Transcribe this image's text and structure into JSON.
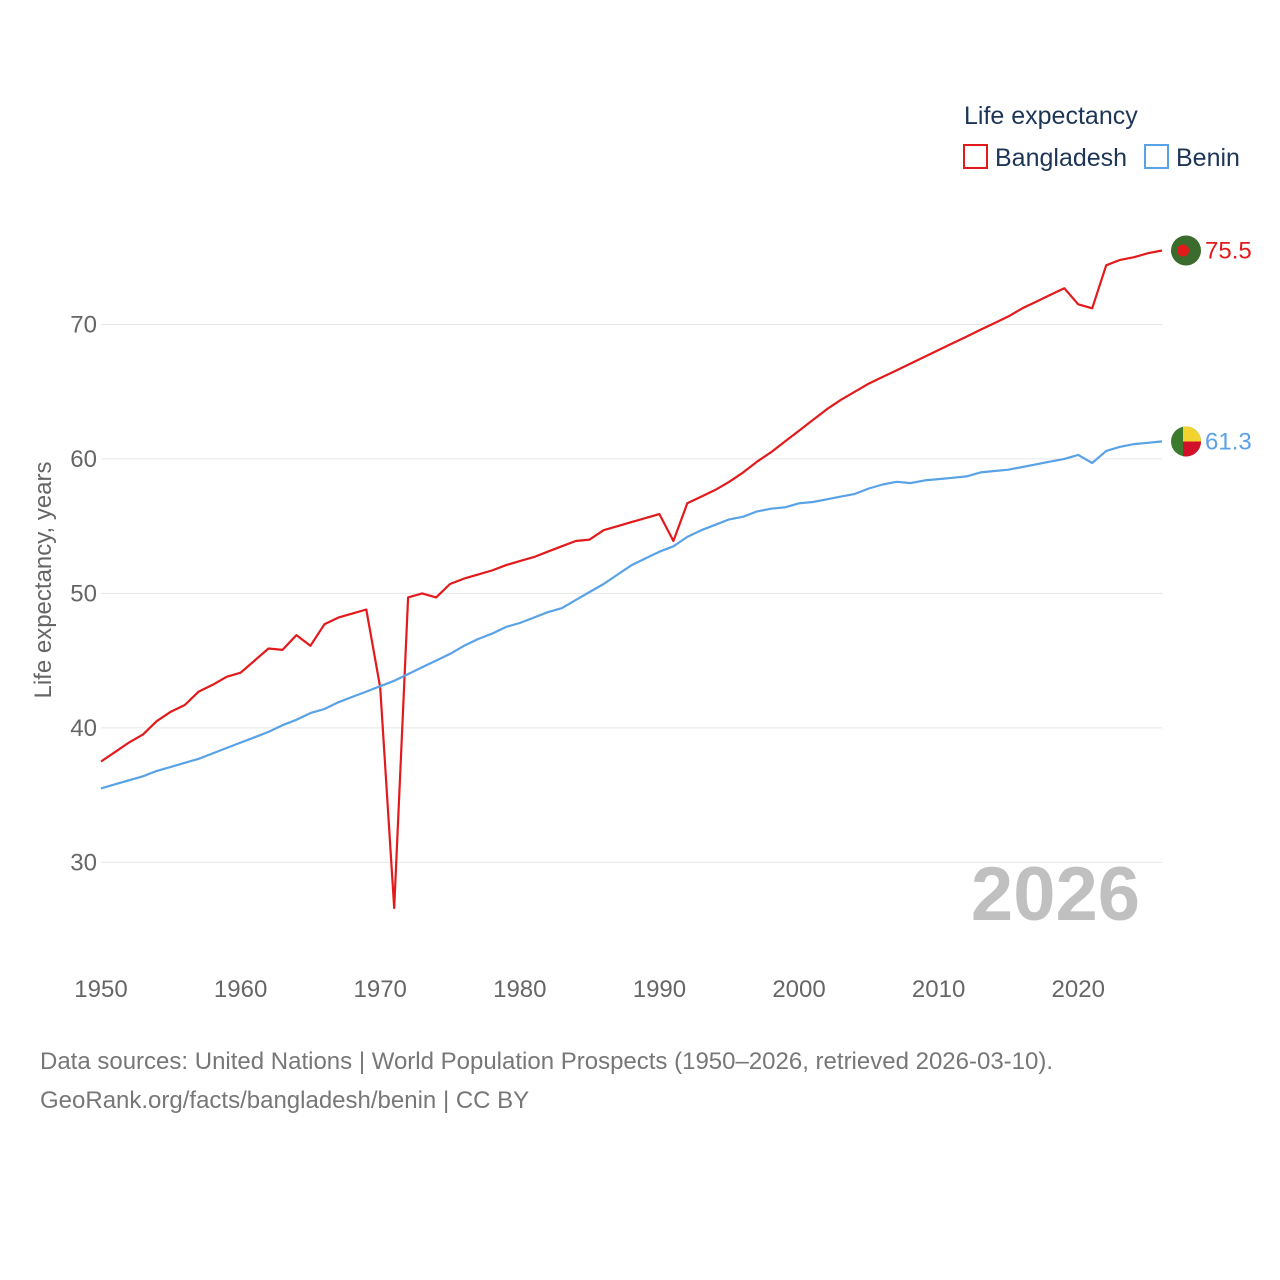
{
  "chart_data": {
    "type": "line",
    "ylabel": "Life expectancy, years",
    "legend_title": "Life expectancy",
    "xlim": [
      1950,
      2026
    ],
    "ylim": [
      24,
      80
    ],
    "xticks": [
      1950,
      1960,
      1970,
      1980,
      1990,
      2000,
      2010,
      2020
    ],
    "yticks": [
      30,
      40,
      50,
      60,
      70
    ],
    "year_overlay": "2026",
    "x": [
      1950,
      1951,
      1952,
      1953,
      1954,
      1955,
      1956,
      1957,
      1958,
      1959,
      1960,
      1961,
      1962,
      1963,
      1964,
      1965,
      1966,
      1967,
      1968,
      1969,
      1970,
      1971,
      1972,
      1973,
      1974,
      1975,
      1976,
      1977,
      1978,
      1979,
      1980,
      1981,
      1982,
      1983,
      1984,
      1985,
      1986,
      1987,
      1988,
      1989,
      1990,
      1991,
      1992,
      1993,
      1994,
      1995,
      1996,
      1997,
      1998,
      1999,
      2000,
      2001,
      2002,
      2003,
      2004,
      2005,
      2006,
      2007,
      2008,
      2009,
      2010,
      2011,
      2012,
      2013,
      2014,
      2015,
      2016,
      2017,
      2018,
      2019,
      2020,
      2021,
      2022,
      2023,
      2024,
      2025,
      2026
    ],
    "series": [
      {
        "name": "Bangladesh",
        "color": "#e31a1c",
        "end_label": "75.5",
        "flag": "bangladesh-flag",
        "values": [
          37.5,
          38.2,
          38.9,
          39.5,
          40.5,
          41.2,
          41.7,
          42.7,
          43.2,
          43.8,
          44.1,
          45.0,
          45.9,
          45.8,
          46.9,
          46.1,
          47.7,
          48.2,
          48.5,
          48.8,
          43.0,
          26.6,
          49.7,
          50.0,
          49.7,
          50.7,
          51.1,
          51.4,
          51.7,
          52.1,
          52.4,
          52.7,
          53.1,
          53.5,
          53.9,
          54.0,
          54.7,
          55.0,
          55.3,
          55.6,
          55.9,
          53.9,
          56.7,
          57.2,
          57.7,
          58.3,
          59.0,
          59.8,
          60.5,
          61.3,
          62.1,
          62.9,
          63.7,
          64.4,
          65.0,
          65.6,
          66.1,
          66.6,
          67.1,
          67.6,
          68.1,
          68.6,
          69.1,
          69.6,
          70.1,
          70.6,
          71.2,
          71.7,
          72.2,
          72.7,
          71.5,
          71.2,
          74.4,
          74.8,
          75.0,
          75.3,
          75.5
        ]
      },
      {
        "name": "Benin",
        "color": "#5aa2e6",
        "end_label": "61.3",
        "flag": "benin-flag",
        "values": [
          35.5,
          35.8,
          36.1,
          36.4,
          36.8,
          37.1,
          37.4,
          37.7,
          38.1,
          38.5,
          38.9,
          39.3,
          39.7,
          40.2,
          40.6,
          41.1,
          41.4,
          41.9,
          42.3,
          42.7,
          43.1,
          43.5,
          44.0,
          44.5,
          45.0,
          45.5,
          46.1,
          46.6,
          47.0,
          47.5,
          47.8,
          48.2,
          48.6,
          48.9,
          49.5,
          50.1,
          50.7,
          51.4,
          52.1,
          52.6,
          53.1,
          53.5,
          54.2,
          54.7,
          55.1,
          55.5,
          55.7,
          56.1,
          56.3,
          56.4,
          56.7,
          56.8,
          57.0,
          57.2,
          57.4,
          57.8,
          58.1,
          58.3,
          58.2,
          58.4,
          58.5,
          58.6,
          58.7,
          59.0,
          59.1,
          59.2,
          59.4,
          59.6,
          59.8,
          60.0,
          60.3,
          59.7,
          60.6,
          60.9,
          61.1,
          61.2,
          61.3
        ]
      }
    ]
  },
  "footer": {
    "sources": "Data sources: United Nations | World Population Prospects (1950–2026, retrieved 2026-03-10).",
    "credit": "GeoRank.org/facts/bangladesh/benin | CC BY"
  }
}
